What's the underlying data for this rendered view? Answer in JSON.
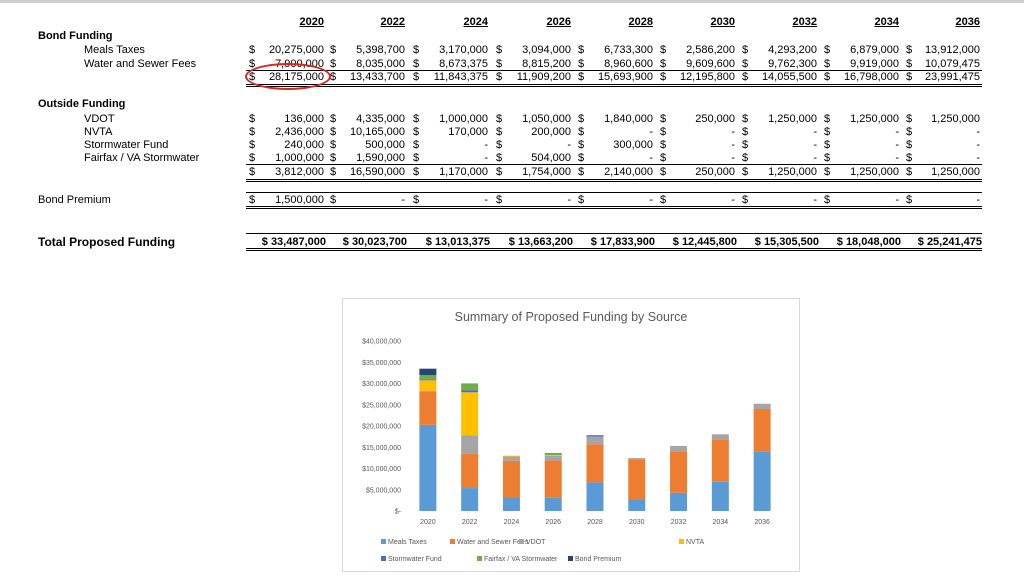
{
  "table": {
    "years": [
      "2020",
      "2022",
      "2024",
      "2026",
      "2028",
      "2030",
      "2032",
      "2034",
      "2036"
    ],
    "currency_symbol": "$",
    "sections": {
      "bond_funding": {
        "label": "Bond Funding",
        "rows": [
          {
            "label": "Meals Taxes",
            "values": [
              "20,275,000",
              "5,398,700",
              "3,170,000",
              "3,094,000",
              "6,733,300",
              "2,586,200",
              "4,293,200",
              "6,879,000",
              "13,912,000"
            ]
          },
          {
            "label": "Water and Sewer Fees",
            "values": [
              "7,900,000",
              "8,035,000",
              "8,673,375",
              "8,815,200",
              "8,960,600",
              "9,609,600",
              "9,762,300",
              "9,919,000",
              "10,079,475"
            ]
          }
        ],
        "subtotal": [
          "28,175,000",
          "13,433,700",
          "11,843,375",
          "11,909,200",
          "15,693,900",
          "12,195,800",
          "14,055,500",
          "16,798,000",
          "23,991,475"
        ]
      },
      "outside_funding": {
        "label": "Outside Funding",
        "rows": [
          {
            "label": "VDOT",
            "values": [
              "136,000",
              "4,335,000",
              "1,000,000",
              "1,050,000",
              "1,840,000",
              "250,000",
              "1,250,000",
              "1,250,000",
              "1,250,000"
            ]
          },
          {
            "label": "NVTA",
            "values": [
              "2,436,000",
              "10,165,000",
              "170,000",
              "200,000",
              "-",
              "-",
              "-",
              "-",
              "-"
            ]
          },
          {
            "label": "Stormwater Fund",
            "values": [
              "240,000",
              "500,000",
              "-",
              "-",
              "300,000",
              "-",
              "-",
              "-",
              "-"
            ]
          },
          {
            "label": "Fairfax / VA Stormwater",
            "values": [
              "1,000,000",
              "1,590,000",
              "-",
              "504,000",
              "-",
              "-",
              "-",
              "-",
              "-"
            ]
          }
        ],
        "subtotal": [
          "3,812,000",
          "16,590,000",
          "1,170,000",
          "1,754,000",
          "2,140,000",
          "250,000",
          "1,250,000",
          "1,250,000",
          "1,250,000"
        ]
      },
      "bond_premium": {
        "label": "Bond Premium",
        "values": [
          "1,500,000",
          "-",
          "-",
          "-",
          "-",
          "-",
          "-",
          "-",
          "-"
        ]
      },
      "total": {
        "label": "Total Proposed Funding",
        "values": [
          "$ 33,487,000",
          "$ 30,023,700",
          "$ 13,013,375",
          "$ 13,663,200",
          "$ 17,833,900",
          "$ 12,445,800",
          "$ 15,305,500",
          "$ 18,048,000",
          "$ 25,241,475"
        ]
      }
    }
  },
  "annotation": {
    "circled_value": "28,175,000",
    "color": "#d62525"
  },
  "chart_data": {
    "type": "bar",
    "stacked": true,
    "title": "Summary of Proposed Funding by Source",
    "xlabel": "",
    "ylabel": "",
    "categories": [
      "2020",
      "2022",
      "2024",
      "2026",
      "2028",
      "2030",
      "2032",
      "2034",
      "2036"
    ],
    "ylim": [
      0,
      40000000
    ],
    "y_ticks": [
      "$-",
      "$5,000,000",
      "$10,000,000",
      "$15,000,000",
      "$20,000,000",
      "$25,000,000",
      "$30,000,000",
      "$35,000,000",
      "$40,000,000"
    ],
    "legend_position": "bottom",
    "series": [
      {
        "name": "Meals Taxes",
        "color": "#5b9bd5",
        "values": [
          20275000,
          5398700,
          3170000,
          3094000,
          6733300,
          2586200,
          4293200,
          6879000,
          13912000
        ]
      },
      {
        "name": "Water and Sewer Fees",
        "color": "#ed7d31",
        "values": [
          7900000,
          8035000,
          8673375,
          8815200,
          8960600,
          9609600,
          9762300,
          9919000,
          10079475
        ]
      },
      {
        "name": "VDOT",
        "color": "#a5a5a5",
        "values": [
          136000,
          4335000,
          1000000,
          1050000,
          1840000,
          250000,
          1250000,
          1250000,
          1250000
        ]
      },
      {
        "name": "NVTA",
        "color": "#ffc000",
        "values": [
          2436000,
          10165000,
          170000,
          200000,
          0,
          0,
          0,
          0,
          0
        ]
      },
      {
        "name": "Stormwater Fund",
        "color": "#4472c4",
        "values": [
          240000,
          500000,
          0,
          0,
          300000,
          0,
          0,
          0,
          0
        ]
      },
      {
        "name": "Fairfax / VA Stormwater",
        "color": "#70ad47",
        "values": [
          1000000,
          1590000,
          0,
          504000,
          0,
          0,
          0,
          0,
          0
        ]
      },
      {
        "name": "Bond Premium",
        "color": "#264478",
        "values": [
          1500000,
          0,
          0,
          0,
          0,
          0,
          0,
          0,
          0
        ]
      }
    ]
  }
}
